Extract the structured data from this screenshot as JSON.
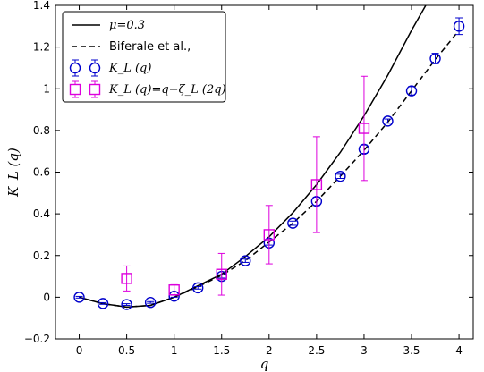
{
  "chart_data": {
    "type": "scatter",
    "xlabel": "q",
    "ylabel": "K_L (q)",
    "xlim": [
      -0.25,
      4.15
    ],
    "ylim": [
      -0.2,
      1.4
    ],
    "xticks": [
      "0",
      "0.5",
      "1",
      "1.5",
      "2",
      "2.5",
      "3",
      "3.5",
      "4"
    ],
    "xtick_values": [
      0,
      0.5,
      1,
      1.5,
      2,
      2.5,
      3,
      3.5,
      4
    ],
    "yticks": [
      "−0.2",
      "0",
      "0.2",
      "0.4",
      "0.6",
      "0.8",
      "1",
      "1.2",
      "1.4"
    ],
    "ytick_values": [
      -0.2,
      0,
      0.2,
      0.4,
      0.6,
      0.8,
      1.0,
      1.2,
      1.4
    ],
    "legend_position": "top-left",
    "curves": [
      {
        "name": "μ=0.3",
        "style": "solid",
        "color": "#000000",
        "x": [
          0,
          0.25,
          0.5,
          0.75,
          1.0,
          1.25,
          1.5,
          1.75,
          2.0,
          2.25,
          2.5,
          2.75,
          3.0,
          3.25,
          3.5,
          3.65
        ],
        "y": [
          0,
          -0.031,
          -0.047,
          -0.039,
          0.0,
          0.055,
          0.11,
          0.195,
          0.29,
          0.405,
          0.54,
          0.695,
          0.87,
          1.065,
          1.28,
          1.4
        ]
      },
      {
        "name": "Biferale et al.,",
        "style": "dashed",
        "color": "#000000",
        "x": [
          0,
          0.25,
          0.5,
          0.75,
          1.0,
          1.25,
          1.5,
          1.75,
          2.0,
          2.25,
          2.5,
          2.75,
          3.0,
          3.25,
          3.5,
          3.75,
          4.0
        ],
        "y": [
          0,
          -0.031,
          -0.047,
          -0.039,
          0.0,
          0.05,
          0.105,
          0.175,
          0.265,
          0.355,
          0.46,
          0.58,
          0.705,
          0.84,
          0.99,
          1.14,
          1.28
        ]
      }
    ],
    "series": [
      {
        "name": "K_L (q)",
        "marker": "circle",
        "color": "#0000cc",
        "x": [
          0,
          0.25,
          0.5,
          0.75,
          1.0,
          1.25,
          1.5,
          1.75,
          2.0,
          2.25,
          2.5,
          2.75,
          3.0,
          3.25,
          3.5,
          3.75,
          4.0
        ],
        "y": [
          0,
          -0.03,
          -0.035,
          -0.025,
          0.005,
          0.045,
          0.1,
          0.175,
          0.26,
          0.355,
          0.46,
          0.58,
          0.71,
          0.845,
          0.99,
          1.145,
          1.3
        ],
        "err": [
          0.004,
          0.004,
          0.004,
          0.004,
          0.005,
          0.006,
          0.008,
          0.008,
          0.01,
          0.01,
          0.02,
          0.01,
          0.02,
          0.01,
          0.02,
          0.025,
          0.04
        ]
      },
      {
        "name": "K_L (q)=q−ζ_L (2q)",
        "marker": "square",
        "color": "#dd00dd",
        "x": [
          0.5,
          1.0,
          1.5,
          2.0,
          2.5,
          3.0
        ],
        "y": [
          0.09,
          0.035,
          0.11,
          0.3,
          0.54,
          0.81
        ],
        "err_low": [
          0.06,
          0.025,
          0.1,
          0.14,
          0.23,
          0.25
        ],
        "err_high": [
          0.06,
          0.025,
          0.1,
          0.14,
          0.23,
          0.25
        ]
      }
    ]
  }
}
